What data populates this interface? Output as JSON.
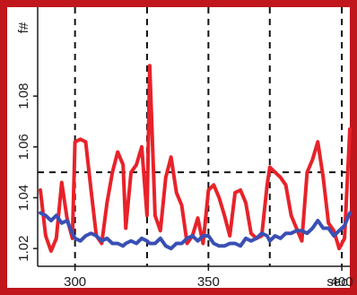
{
  "colors": {
    "frame": "#c0161c",
    "background": "#ffffff",
    "axis": "#1a1a1a",
    "gridline": "#111111"
  },
  "chart_data": {
    "type": "line",
    "title": "",
    "xlabel": "sec",
    "ylabel": "f#",
    "xlim": [
      286,
      403
    ],
    "ylim": [
      1.013,
      1.115
    ],
    "x_ticks": [
      300,
      350,
      400
    ],
    "x_tick_labels": [
      "300",
      "350",
      "400"
    ],
    "y_ticks": [
      1.02,
      1.04,
      1.06,
      1.08
    ],
    "y_tick_labels": [
      "1.02",
      "1.04",
      "1.06",
      "1.08"
    ],
    "grid": {
      "vertical_dashed_at_x": [
        300,
        350,
        400
      ],
      "extra_vertical_dashed_at_x": [
        327,
        373
      ],
      "horizontal_dashed_at_y": [
        1.05
      ]
    },
    "frame": "red border around the plot area",
    "series": [
      {
        "color": "#e8222a",
        "x": [
          287,
          289,
          291,
          293,
          295,
          297,
          299,
          300,
          302,
          304,
          306,
          308,
          310,
          312,
          314,
          316,
          318,
          319,
          321,
          323,
          325,
          327,
          328,
          330,
          332,
          334,
          336,
          338,
          340,
          342,
          344,
          346,
          348,
          350,
          352,
          354,
          356,
          358,
          360,
          362,
          364,
          366,
          368,
          370,
          372,
          373,
          375,
          377,
          379,
          381,
          383,
          385,
          387,
          389,
          391,
          393,
          395,
          397,
          399,
          401,
          403
        ],
        "values": [
          1.043,
          1.025,
          1.019,
          1.024,
          1.046,
          1.032,
          1.024,
          1.062,
          1.063,
          1.062,
          1.043,
          1.025,
          1.022,
          1.038,
          1.05,
          1.058,
          1.053,
          1.028,
          1.05,
          1.053,
          1.06,
          1.033,
          1.092,
          1.033,
          1.027,
          1.048,
          1.056,
          1.042,
          1.037,
          1.022,
          1.025,
          1.032,
          1.022,
          1.043,
          1.045,
          1.04,
          1.033,
          1.025,
          1.042,
          1.043,
          1.038,
          1.026,
          1.024,
          1.025,
          1.045,
          1.052,
          1.05,
          1.048,
          1.045,
          1.033,
          1.028,
          1.023,
          1.05,
          1.055,
          1.062,
          1.048,
          1.03,
          1.027,
          1.02,
          1.024,
          1.067
        ]
      },
      {
        "color": "#3a4fb4",
        "x": [
          287,
          289,
          291,
          293,
          295,
          297,
          299,
          300,
          302,
          304,
          306,
          308,
          310,
          312,
          314,
          316,
          318,
          319,
          321,
          323,
          325,
          327,
          328,
          330,
          332,
          334,
          336,
          338,
          340,
          342,
          344,
          346,
          348,
          350,
          352,
          354,
          356,
          358,
          360,
          362,
          364,
          366,
          368,
          370,
          372,
          373,
          375,
          377,
          379,
          381,
          383,
          385,
          387,
          389,
          391,
          393,
          395,
          397,
          399,
          401,
          403
        ],
        "values": [
          1.034,
          1.033,
          1.031,
          1.033,
          1.03,
          1.031,
          1.026,
          1.024,
          1.023,
          1.025,
          1.026,
          1.025,
          1.023,
          1.024,
          1.022,
          1.022,
          1.021,
          1.022,
          1.023,
          1.022,
          1.024,
          1.023,
          1.022,
          1.022,
          1.024,
          1.021,
          1.02,
          1.022,
          1.022,
          1.024,
          1.025,
          1.023,
          1.025,
          1.025,
          1.022,
          1.021,
          1.021,
          1.022,
          1.022,
          1.021,
          1.024,
          1.023,
          1.024,
          1.026,
          1.025,
          1.023,
          1.025,
          1.024,
          1.026,
          1.026,
          1.027,
          1.027,
          1.026,
          1.028,
          1.031,
          1.028,
          1.028,
          1.025,
          1.027,
          1.029,
          1.034
        ]
      }
    ]
  }
}
